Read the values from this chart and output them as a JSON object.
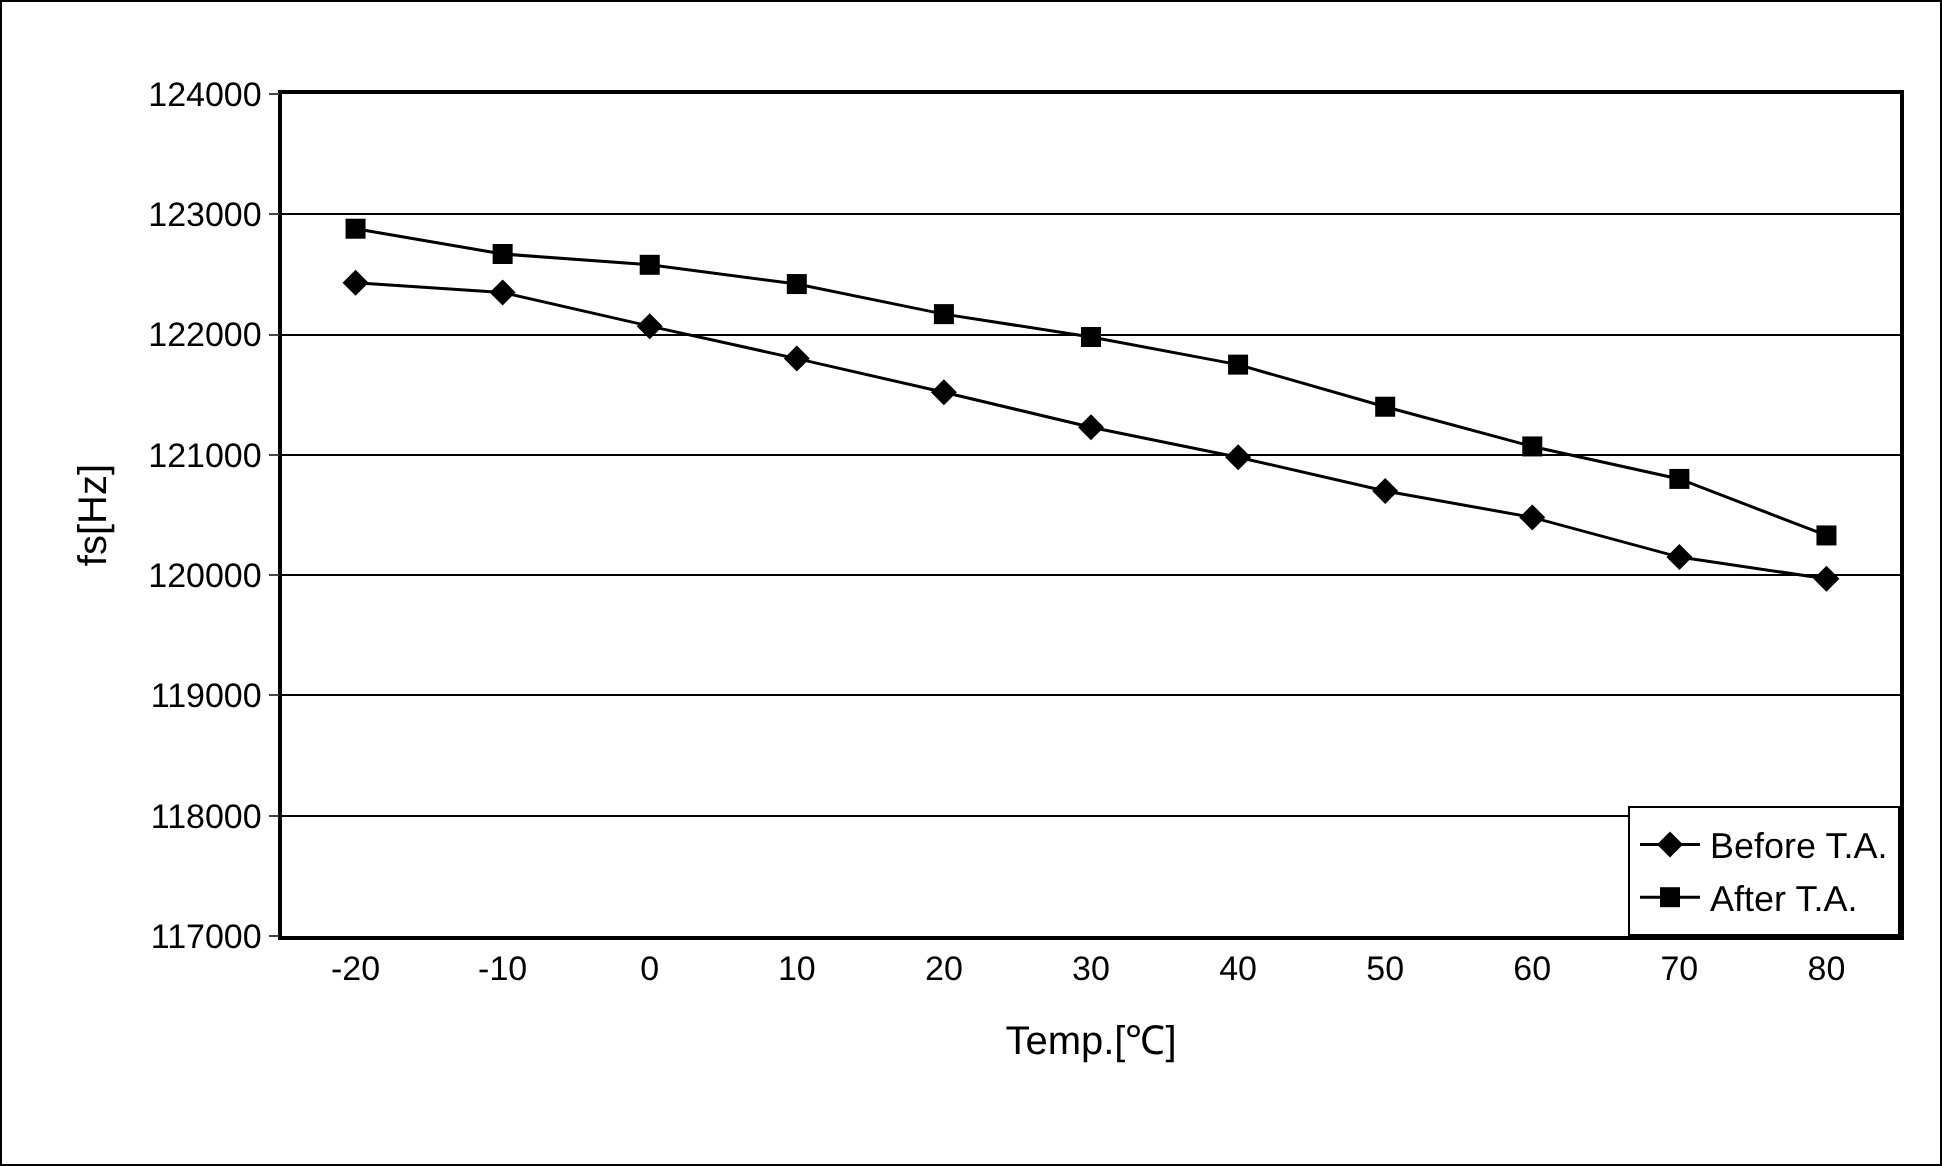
{
  "chart_data": {
    "type": "line",
    "xlabel": "Temp.[℃]",
    "ylabel": "fs[Hz]",
    "categories": [
      "-20",
      "-10",
      "0",
      "10",
      "20",
      "30",
      "40",
      "50",
      "60",
      "70",
      "80"
    ],
    "series": [
      {
        "name": "Before T.A.",
        "color": "#000000",
        "marker": "diamond",
        "values": [
          122430,
          122350,
          122070,
          121800,
          121520,
          121230,
          120980,
          120700,
          120480,
          120150,
          119970
        ]
      },
      {
        "name": "After T.A.",
        "color": "#000000",
        "marker": "square",
        "values": [
          122880,
          122670,
          122580,
          122420,
          122170,
          121980,
          121750,
          121400,
          121070,
          120800,
          120330
        ]
      }
    ],
    "ylim": [
      117000,
      124000
    ],
    "yticks": [
      117000,
      118000,
      119000,
      120000,
      121000,
      122000,
      123000,
      124000
    ],
    "grid": "y",
    "legend": "bottom right",
    "line_style": "solid"
  }
}
